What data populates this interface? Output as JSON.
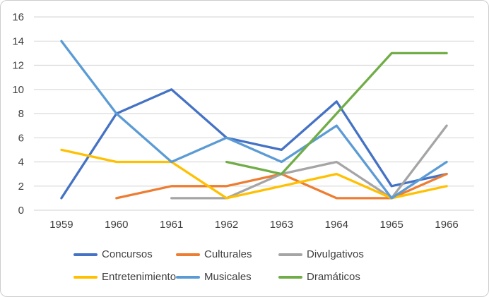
{
  "chart_data": {
    "type": "line",
    "title": "",
    "xlabel": "",
    "ylabel": "",
    "categories": [
      "1959",
      "1960",
      "1961",
      "1962",
      "1963",
      "1964",
      "1965",
      "1966"
    ],
    "series": [
      {
        "name": "Concursos",
        "color": "#4472C4",
        "values": [
          1,
          8,
          10,
          6,
          5,
          9,
          2,
          3
        ]
      },
      {
        "name": "Culturales",
        "color": "#ED7D31",
        "values": [
          null,
          1,
          2,
          2,
          3,
          1,
          1,
          3
        ]
      },
      {
        "name": "Divulgativos",
        "color": "#A5A5A5",
        "values": [
          null,
          null,
          1,
          1,
          3,
          4,
          1,
          7
        ]
      },
      {
        "name": "Entretenimiento",
        "color": "#FFC000",
        "values": [
          5,
          4,
          4,
          1,
          2,
          3,
          1,
          2
        ]
      },
      {
        "name": "Musicales",
        "color": "#5B9BD5",
        "values": [
          14,
          8,
          4,
          6,
          4,
          7,
          1,
          4
        ]
      },
      {
        "name": "Dramáticos",
        "color": "#70AD47",
        "values": [
          null,
          null,
          null,
          4,
          3,
          8,
          13,
          13
        ]
      }
    ],
    "y_axis": {
      "min": 0,
      "max": 16,
      "step": 2
    },
    "y_tick_labels": [
      "0",
      "2",
      "4",
      "6",
      "8",
      "10",
      "12",
      "14",
      "16"
    ],
    "x_tick_labels": [
      "1959",
      "1960",
      "1961",
      "1962",
      "1963",
      "1964",
      "1965",
      "1966"
    ],
    "grid": true,
    "legend_position": "bottom",
    "legend_rows": 2,
    "colors": {
      "gridline": "#D9D9D9",
      "tick_label": "#404040",
      "legend_label": "#404040",
      "frame_border": "#CDCDCD",
      "background": "#FFFFFF"
    }
  }
}
